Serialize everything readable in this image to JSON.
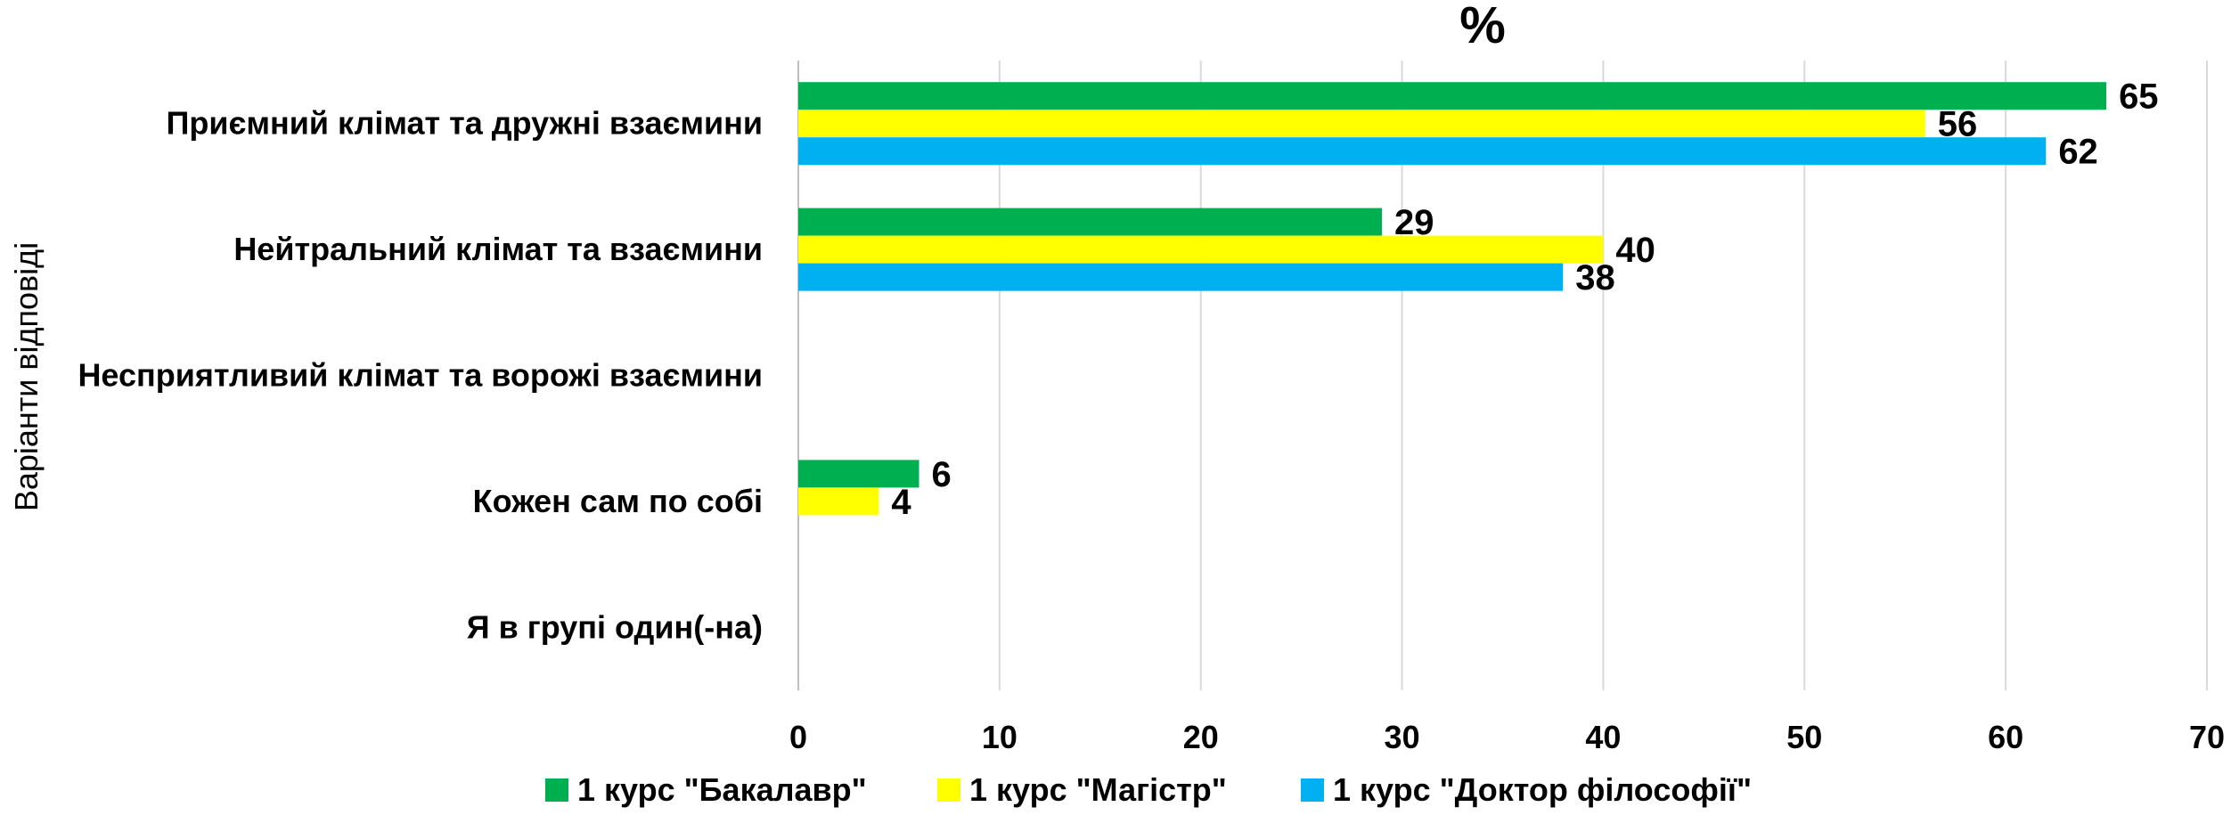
{
  "chart_data": {
    "type": "bar",
    "orientation": "horizontal",
    "title": "%",
    "xlabel": "",
    "ylabel": "Варіанти відповіді",
    "categories": [
      "Приємний клімат та дружні взаємини",
      "Нейтральний клімат та взаємини",
      "Несприятливий клімат та ворожі взаємини",
      "Кожен сам по собі",
      "Я в групі один(-на)"
    ],
    "series": [
      {
        "name": "1 курс \"Бакалавр\"",
        "color": "#00B050",
        "values": [
          65,
          29,
          null,
          6,
          null
        ]
      },
      {
        "name": "1 курс \"Магістр\"",
        "color": "#FFFF00",
        "values": [
          56,
          40,
          null,
          4,
          null
        ]
      },
      {
        "name": "1 курс \"Доктор філософії\"",
        "color": "#00B0F0",
        "values": [
          62,
          38,
          null,
          null,
          null
        ]
      }
    ],
    "xlim": [
      0,
      70
    ],
    "x_ticks": [
      "0",
      "10",
      "20",
      "30",
      "40",
      "50",
      "60",
      "70"
    ],
    "grid": true,
    "legend_position": "bottom"
  }
}
